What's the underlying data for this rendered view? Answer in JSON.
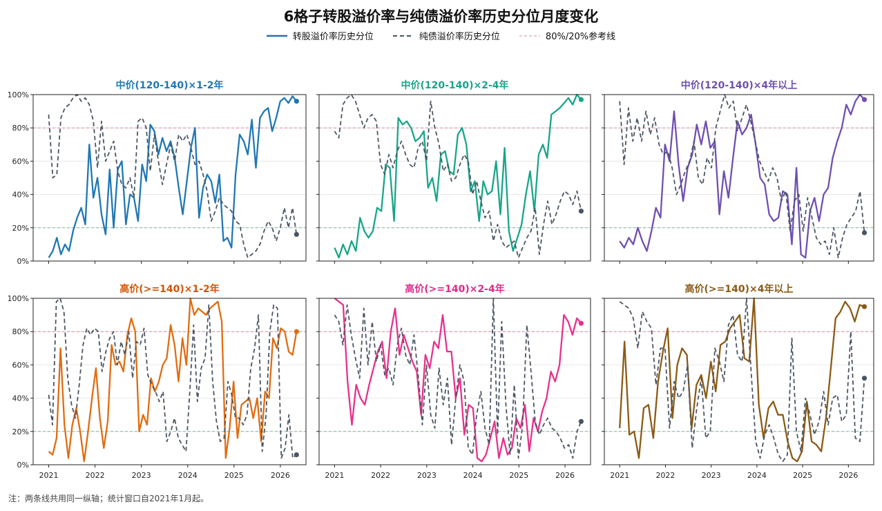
{
  "title": "6格子转股溢价率与纯债溢价率历史分位月度变化",
  "legend": [
    {
      "label": "转股溢价率历史分位",
      "style": "solid",
      "color": "#2c6fb0"
    },
    {
      "label": "纯债溢价率历史分位",
      "style": "dashed",
      "color": "#4a5563"
    },
    {
      "label": "80%/20%参考线",
      "style": "dashed-thin",
      "color": "#d9a0b0"
    }
  ],
  "note": "注：两条线共用同一纵轴；统计窗口自2021年1月起。",
  "chart_data": [
    {
      "type": "line",
      "title": "中价(120-140)×1-2年",
      "title_color": "#1f77b4",
      "x_ticks": [
        "2021",
        "2022",
        "2023",
        "2024",
        "2025",
        "2026"
      ],
      "y_ticks": [
        "0%",
        "20%",
        "40%",
        "60%",
        "80%",
        "100%"
      ],
      "ylim": [
        0,
        100
      ],
      "ref_lines": [
        80,
        20
      ],
      "grid": true,
      "series": [
        {
          "name": "转股溢价率历史分位",
          "color": "#1f77b4",
          "style": "solid",
          "values": [
            2,
            6,
            14,
            4,
            10,
            6,
            18,
            26,
            32,
            22,
            70,
            38,
            50,
            28,
            16,
            55,
            20,
            55,
            60,
            22,
            40,
            38,
            24,
            58,
            48,
            82,
            78,
            64,
            74,
            66,
            72,
            62,
            44,
            28,
            48,
            68,
            80,
            26,
            44,
            52,
            48,
            35,
            52,
            12,
            14,
            8,
            52,
            76,
            72,
            64,
            85,
            56,
            86,
            90,
            92,
            78,
            86,
            96,
            98,
            95,
            99,
            96
          ]
        },
        {
          "name": "纯债溢价率历史分位",
          "color": "#4a5563",
          "style": "dashed",
          "values": [
            88,
            50,
            52,
            86,
            92,
            94,
            98,
            100,
            96,
            98,
            94,
            84,
            56,
            84,
            60,
            66,
            72,
            54,
            46,
            44,
            50,
            38,
            84,
            86,
            80,
            54,
            76,
            60,
            46,
            58,
            70,
            60,
            76,
            72,
            76,
            68,
            58,
            60,
            52,
            42,
            24,
            30,
            38,
            34,
            32,
            30,
            24,
            22,
            10,
            2,
            4,
            6,
            10,
            18,
            24,
            20,
            12,
            20,
            32,
            20,
            32,
            16
          ]
        }
      ]
    },
    {
      "type": "line",
      "title": "中价(120-140)×2-4年",
      "title_color": "#17a589",
      "x_ticks": [
        "2021",
        "2022",
        "2023",
        "2024",
        "2025",
        "2026"
      ],
      "y_ticks": [
        "0%",
        "20%",
        "40%",
        "60%",
        "80%",
        "100%"
      ],
      "ylim": [
        0,
        100
      ],
      "ref_lines": [
        80,
        20
      ],
      "grid": true,
      "series": [
        {
          "name": "转股溢价率历史分位",
          "color": "#17a589",
          "style": "solid",
          "values": [
            8,
            2,
            10,
            4,
            12,
            6,
            26,
            18,
            14,
            18,
            32,
            30,
            58,
            56,
            24,
            86,
            82,
            84,
            80,
            72,
            74,
            78,
            44,
            50,
            36,
            64,
            66,
            54,
            52,
            76,
            80,
            70,
            42,
            48,
            24,
            48,
            40,
            42,
            60,
            28,
            68,
            18,
            6,
            14,
            22,
            40,
            54,
            30,
            64,
            70,
            62,
            88,
            90,
            92,
            95,
            98,
            94,
            100,
            97
          ]
        },
        {
          "name": "纯债溢价率历史分位",
          "color": "#4a5563",
          "style": "dashed",
          "values": [
            78,
            74,
            94,
            98,
            100,
            96,
            88,
            80,
            86,
            88,
            84,
            58,
            52,
            64,
            56,
            66,
            72,
            64,
            58,
            56,
            68,
            72,
            60,
            96,
            80,
            70,
            54,
            58,
            48,
            50,
            58,
            64,
            60,
            40,
            48,
            36,
            26,
            30,
            12,
            22,
            12,
            8,
            10,
            12,
            2,
            8,
            14,
            18,
            32,
            4,
            22,
            36,
            22,
            28,
            36,
            42,
            40,
            34,
            42,
            30
          ]
        }
      ]
    },
    {
      "type": "line",
      "title": "中价(120-140)×4年以上",
      "title_color": "#6f4fb0",
      "x_ticks": [
        "2021",
        "2022",
        "2023",
        "2024",
        "2025",
        "2026"
      ],
      "y_ticks": [
        "0%",
        "20%",
        "40%",
        "60%",
        "80%",
        "100%"
      ],
      "ylim": [
        0,
        100
      ],
      "ref_lines": [
        80,
        20
      ],
      "grid": true,
      "series": [
        {
          "name": "转股溢价率历史分位",
          "color": "#6f4fb0",
          "style": "solid",
          "values": [
            12,
            8,
            14,
            10,
            20,
            12,
            6,
            18,
            32,
            26,
            70,
            60,
            90,
            58,
            36,
            56,
            64,
            82,
            70,
            84,
            68,
            72,
            28,
            54,
            38,
            62,
            84,
            76,
            80,
            88,
            70,
            50,
            46,
            28,
            24,
            26,
            42,
            40,
            10,
            56,
            4,
            2,
            30,
            38,
            24,
            40,
            44,
            62,
            72,
            80,
            94,
            88,
            96,
            100,
            97
          ]
        },
        {
          "name": "纯债溢价率历史分位",
          "color": "#4a5563",
          "style": "dashed",
          "values": [
            96,
            58,
            92,
            72,
            86,
            72,
            90,
            76,
            86,
            70,
            64,
            66,
            56,
            40,
            46,
            54,
            60,
            72,
            50,
            46,
            62,
            56,
            80,
            90,
            100,
            92,
            96,
            78,
            86,
            94,
            84,
            72,
            60,
            54,
            48,
            56,
            50,
            36,
            42,
            18,
            36,
            40,
            18,
            38,
            26,
            14,
            10,
            12,
            4,
            20,
            2,
            14,
            22,
            26,
            30,
            42,
            17
          ]
        }
      ]
    },
    {
      "type": "line",
      "title": "高价(>=140)×1-2年",
      "title_color": "#d35400",
      "x_ticks": [
        "2021",
        "2022",
        "2023",
        "2024",
        "2025",
        "2026"
      ],
      "y_ticks": [
        "0%",
        "20%",
        "40%",
        "60%",
        "80%",
        "100%"
      ],
      "ylim": [
        0,
        100
      ],
      "ref_lines": [
        80,
        20
      ],
      "grid": true,
      "series": [
        {
          "name": "转股溢价率历史分位",
          "color": "#e06c10",
          "style": "solid",
          "values": [
            8,
            6,
            16,
            70,
            24,
            4,
            24,
            34,
            20,
            2,
            20,
            40,
            58,
            28,
            10,
            26,
            72,
            60,
            62,
            56,
            78,
            88,
            80,
            20,
            30,
            24,
            52,
            44,
            50,
            60,
            64,
            84,
            72,
            50,
            76,
            60,
            100,
            90,
            94,
            92,
            90,
            94,
            96,
            98,
            86,
            4,
            22,
            50,
            16,
            36,
            38,
            40,
            28,
            40,
            14,
            44,
            40,
            76,
            70,
            82,
            80,
            68,
            66,
            80
          ]
        },
        {
          "name": "纯债溢价率历史分位",
          "color": "#4a5563",
          "style": "dashed",
          "values": [
            42,
            24,
            98,
            100,
            92,
            52,
            36,
            28,
            48,
            72,
            82,
            78,
            82,
            80,
            56,
            68,
            76,
            80,
            60,
            74,
            66,
            80,
            52,
            74,
            72,
            82,
            54,
            48,
            44,
            38,
            44,
            14,
            20,
            28,
            16,
            12,
            8,
            44,
            84,
            38,
            58,
            64,
            96,
            50,
            26,
            14,
            16,
            50,
            42,
            28,
            28,
            24,
            30,
            58,
            70,
            90,
            8,
            30,
            80,
            96,
            94,
            4,
            10,
            30,
            4,
            6
          ]
        }
      ]
    },
    {
      "type": "line",
      "title": "高价(>=140)×2-4年",
      "title_color": "#e0298a",
      "x_ticks": [
        "2021",
        "2022",
        "2023",
        "2024",
        "2025",
        "2026"
      ],
      "y_ticks": [
        "0%",
        "20%",
        "40%",
        "60%",
        "80%",
        "100%"
      ],
      "ylim": [
        0,
        100
      ],
      "ref_lines": [
        80,
        20
      ],
      "grid": true,
      "series": [
        {
          "name": "转股溢价率历史分位",
          "color": "#e8308c",
          "style": "solid",
          "values": [
            100,
            98,
            96,
            50,
            24,
            48,
            40,
            36,
            48,
            58,
            68,
            74,
            52,
            80,
            94,
            66,
            78,
            70,
            62,
            56,
            30,
            66,
            58,
            74,
            70,
            90,
            68,
            68,
            40,
            52,
            18,
            36,
            34,
            4,
            2,
            6,
            16,
            26,
            4,
            16,
            6,
            10,
            28,
            22,
            36,
            8,
            28,
            20,
            32,
            40,
            56,
            50,
            60,
            90,
            86,
            78,
            88,
            85
          ]
        },
        {
          "name": "纯债溢价率历史分位",
          "color": "#4a5563",
          "style": "dashed",
          "values": [
            90,
            86,
            72,
            96,
            78,
            64,
            52,
            94,
            60,
            86,
            62,
            72,
            54,
            58,
            48,
            72,
            82,
            66,
            60,
            78,
            54,
            24,
            60,
            30,
            22,
            58,
            36,
            52,
            12,
            40,
            60,
            50,
            10,
            6,
            30,
            44,
            22,
            12,
            100,
            18,
            86,
            36,
            6,
            48,
            4,
            24,
            84,
            56,
            26,
            18,
            24,
            28,
            22,
            20,
            16,
            10,
            12,
            4,
            20,
            26
          ]
        }
      ]
    },
    {
      "type": "line",
      "title": "高价(>=140)×4年以上",
      "title_color": "#8b5a13",
      "x_ticks": [
        "2021",
        "2022",
        "2023",
        "2024",
        "2025",
        "2026"
      ],
      "y_ticks": [
        "0%",
        "20%",
        "40%",
        "60%",
        "80%",
        "100%"
      ],
      "ylim": [
        0,
        100
      ],
      "ref_lines": [
        80,
        20
      ],
      "grid": true,
      "series": [
        {
          "name": "转股溢价率历史分位",
          "color": "#8b5a13",
          "style": "solid",
          "values": [
            22,
            74,
            18,
            20,
            4,
            34,
            36,
            16,
            50,
            68,
            82,
            28,
            60,
            70,
            66,
            22,
            48,
            54,
            40,
            62,
            44,
            72,
            74,
            82,
            86,
            90,
            64,
            62,
            100,
            36,
            16,
            34,
            38,
            30,
            30,
            14,
            4,
            2,
            8,
            38,
            14,
            12,
            8,
            28,
            58,
            88,
            92,
            98,
            94,
            86,
            96,
            95
          ]
        },
        {
          "name": "纯债溢价率历史分位",
          "color": "#4a5563",
          "style": "dashed",
          "values": [
            98,
            96,
            94,
            88,
            70,
            92,
            86,
            82,
            48,
            70,
            70,
            22,
            50,
            40,
            44,
            60,
            10,
            34,
            52,
            16,
            20,
            70,
            62,
            50,
            84,
            90,
            66,
            62,
            100,
            56,
            14,
            4,
            18,
            24,
            16,
            6,
            2,
            6,
            76,
            20,
            8,
            40,
            30,
            18,
            26,
            44,
            24,
            40,
            42,
            26,
            30,
            80,
            16,
            14,
            52
          ]
        }
      ]
    }
  ]
}
